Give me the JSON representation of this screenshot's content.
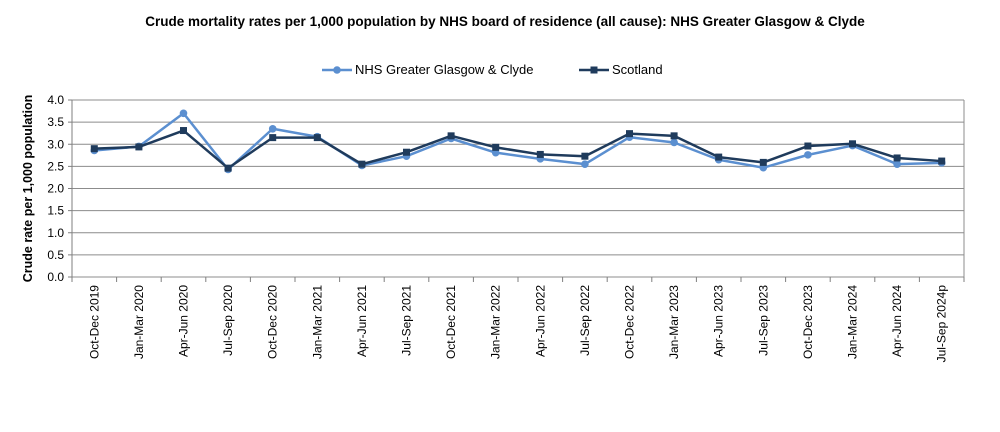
{
  "chart_data": {
    "type": "line",
    "title": "Crude mortality rates per 1,000 population by NHS board of residence (all cause): NHS Greater Glasgow & Clyde",
    "xlabel": "",
    "ylabel": "Crude rate per 1,000 population",
    "ylim": [
      0,
      4
    ],
    "yticks": [
      "0.0",
      "0.5",
      "1.0",
      "1.5",
      "2.0",
      "2.5",
      "3.0",
      "3.5",
      "4.0"
    ],
    "grid": true,
    "legend_position": "top",
    "categories": [
      "Oct-Dec 2019",
      "Jan-Mar 2020",
      "Apr-Jun 2020",
      "Jul-Sep 2020",
      "Oct-Dec 2020",
      "Jan-Mar 2021",
      "Apr-Jun 2021",
      "Jul-Sep 2021",
      "Oct-Dec 2021",
      "Jan-Mar 2022",
      "Apr-Jun 2022",
      "Jul-Sep 2022",
      "Oct-Dec 2022",
      "Jan-Mar 2023",
      "Apr-Jun 2023",
      "Jul-Sep 2023",
      "Oct-Dec 2023",
      "Jan-Mar 2024",
      "Apr-Jun 2024",
      "Jul-Sep 2024p"
    ],
    "series": [
      {
        "name": "NHS Greater Glasgow & Clyde",
        "color": "#5b8fd0",
        "marker": "circle",
        "values": [
          2.86,
          2.95,
          3.7,
          2.43,
          3.35,
          3.17,
          2.52,
          2.73,
          3.13,
          2.81,
          2.67,
          2.55,
          3.16,
          3.04,
          2.65,
          2.47,
          2.76,
          2.97,
          2.55,
          2.58
        ]
      },
      {
        "name": "Scotland",
        "color": "#1f3b5c",
        "marker": "square",
        "values": [
          2.9,
          2.94,
          3.31,
          2.46,
          3.15,
          3.15,
          2.55,
          2.82,
          3.19,
          2.93,
          2.77,
          2.73,
          3.24,
          3.19,
          2.71,
          2.59,
          2.96,
          3.01,
          2.69,
          2.62
        ]
      }
    ]
  }
}
